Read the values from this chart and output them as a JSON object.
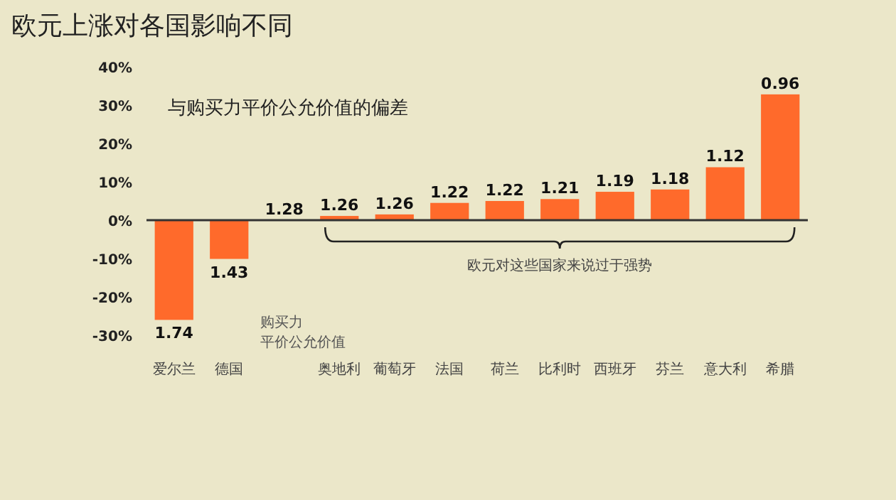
{
  "chart_data": {
    "type": "bar",
    "title": "欧元上涨对各国影响不同",
    "subtitle": "与购买力平价公允价值的偏差",
    "categories": [
      "爱尔兰",
      "德国",
      "购买力平价公允价值",
      "奥地利",
      "葡萄牙",
      "法国",
      "荷兰",
      "比利时",
      "西班牙",
      "芬兰",
      "意大利",
      "希腊"
    ],
    "values": [
      -26,
      -10.1,
      0,
      1.1,
      1.5,
      4.5,
      5,
      5.5,
      7.4,
      8,
      13.8,
      32.8
    ],
    "color": "#ff6a2b",
    "ylim": [
      -30,
      40
    ],
    "yticks": [
      {
        "value": -30,
        "label": "-30%"
      },
      {
        "value": -20,
        "label": "-20%"
      },
      {
        "value": -10,
        "label": "-10%"
      },
      {
        "value": 0,
        "label": "0%"
      },
      {
        "value": 10,
        "label": "10%"
      },
      {
        "value": 20,
        "label": "20%"
      },
      {
        "value": 30,
        "label": "30%"
      },
      {
        "value": 40,
        "label": "40%"
      }
    ],
    "annotations": [
      "欧元对这些国家来说过于强势",
      {
        "text": "1.74",
        "x": "爱尔兰",
        "y": -26
      },
      {
        "text": "1.43",
        "x": "德国",
        "y": -10.1
      },
      {
        "text": "1.28",
        "x": "购买力平价公允价值",
        "y": 0
      },
      {
        "text": "1.26",
        "x": "奥地利",
        "y": 1.1
      },
      {
        "text": "1.26",
        "x": "葡萄牙",
        "y": 1.5
      },
      {
        "text": "1.22",
        "x": "法国",
        "y": 4.5
      },
      {
        "text": "1.22",
        "x": "荷兰",
        "y": 5
      },
      {
        "text": "1.21",
        "x": "比利时",
        "y": 5.5
      },
      {
        "text": "1.19",
        "x": "西班牙",
        "y": 7.4
      },
      {
        "text": "1.18",
        "x": "芬兰",
        "y": 8
      },
      {
        "text": "1.12",
        "x": "意大利",
        "y": 13.8
      },
      {
        "text": "0.96",
        "x": "希腊",
        "y": 32.8
      }
    ]
  }
}
